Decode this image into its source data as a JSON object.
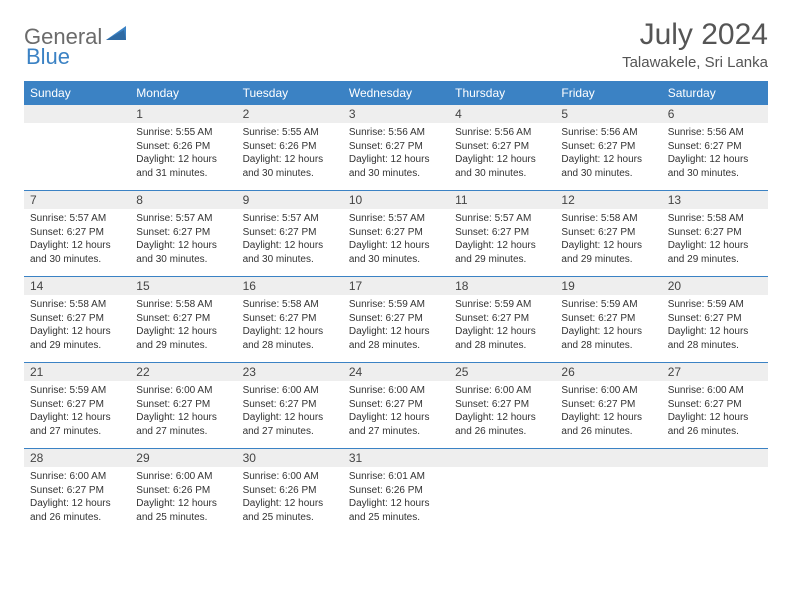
{
  "brand": {
    "general": "General",
    "blue": "Blue"
  },
  "title": {
    "month": "July 2024",
    "location": "Talawakele, Sri Lanka"
  },
  "colors": {
    "header_bg": "#3b82c4",
    "header_text": "#ffffff",
    "daynum_bg": "#eeeeee",
    "row_divider": "#3b82c4",
    "body_text": "#333333",
    "logo_gray": "#6b6b6b",
    "logo_blue": "#3b82c4"
  },
  "weekdays": [
    "Sunday",
    "Monday",
    "Tuesday",
    "Wednesday",
    "Thursday",
    "Friday",
    "Saturday"
  ],
  "weeks": [
    {
      "nums": [
        "",
        "1",
        "2",
        "3",
        "4",
        "5",
        "6"
      ],
      "cells": [
        null,
        {
          "sunrise": "Sunrise: 5:55 AM",
          "sunset": "Sunset: 6:26 PM",
          "day1": "Daylight: 12 hours",
          "day2": "and 31 minutes."
        },
        {
          "sunrise": "Sunrise: 5:55 AM",
          "sunset": "Sunset: 6:26 PM",
          "day1": "Daylight: 12 hours",
          "day2": "and 30 minutes."
        },
        {
          "sunrise": "Sunrise: 5:56 AM",
          "sunset": "Sunset: 6:27 PM",
          "day1": "Daylight: 12 hours",
          "day2": "and 30 minutes."
        },
        {
          "sunrise": "Sunrise: 5:56 AM",
          "sunset": "Sunset: 6:27 PM",
          "day1": "Daylight: 12 hours",
          "day2": "and 30 minutes."
        },
        {
          "sunrise": "Sunrise: 5:56 AM",
          "sunset": "Sunset: 6:27 PM",
          "day1": "Daylight: 12 hours",
          "day2": "and 30 minutes."
        },
        {
          "sunrise": "Sunrise: 5:56 AM",
          "sunset": "Sunset: 6:27 PM",
          "day1": "Daylight: 12 hours",
          "day2": "and 30 minutes."
        }
      ]
    },
    {
      "nums": [
        "7",
        "8",
        "9",
        "10",
        "11",
        "12",
        "13"
      ],
      "cells": [
        {
          "sunrise": "Sunrise: 5:57 AM",
          "sunset": "Sunset: 6:27 PM",
          "day1": "Daylight: 12 hours",
          "day2": "and 30 minutes."
        },
        {
          "sunrise": "Sunrise: 5:57 AM",
          "sunset": "Sunset: 6:27 PM",
          "day1": "Daylight: 12 hours",
          "day2": "and 30 minutes."
        },
        {
          "sunrise": "Sunrise: 5:57 AM",
          "sunset": "Sunset: 6:27 PM",
          "day1": "Daylight: 12 hours",
          "day2": "and 30 minutes."
        },
        {
          "sunrise": "Sunrise: 5:57 AM",
          "sunset": "Sunset: 6:27 PM",
          "day1": "Daylight: 12 hours",
          "day2": "and 30 minutes."
        },
        {
          "sunrise": "Sunrise: 5:57 AM",
          "sunset": "Sunset: 6:27 PM",
          "day1": "Daylight: 12 hours",
          "day2": "and 29 minutes."
        },
        {
          "sunrise": "Sunrise: 5:58 AM",
          "sunset": "Sunset: 6:27 PM",
          "day1": "Daylight: 12 hours",
          "day2": "and 29 minutes."
        },
        {
          "sunrise": "Sunrise: 5:58 AM",
          "sunset": "Sunset: 6:27 PM",
          "day1": "Daylight: 12 hours",
          "day2": "and 29 minutes."
        }
      ]
    },
    {
      "nums": [
        "14",
        "15",
        "16",
        "17",
        "18",
        "19",
        "20"
      ],
      "cells": [
        {
          "sunrise": "Sunrise: 5:58 AM",
          "sunset": "Sunset: 6:27 PM",
          "day1": "Daylight: 12 hours",
          "day2": "and 29 minutes."
        },
        {
          "sunrise": "Sunrise: 5:58 AM",
          "sunset": "Sunset: 6:27 PM",
          "day1": "Daylight: 12 hours",
          "day2": "and 29 minutes."
        },
        {
          "sunrise": "Sunrise: 5:58 AM",
          "sunset": "Sunset: 6:27 PM",
          "day1": "Daylight: 12 hours",
          "day2": "and 28 minutes."
        },
        {
          "sunrise": "Sunrise: 5:59 AM",
          "sunset": "Sunset: 6:27 PM",
          "day1": "Daylight: 12 hours",
          "day2": "and 28 minutes."
        },
        {
          "sunrise": "Sunrise: 5:59 AM",
          "sunset": "Sunset: 6:27 PM",
          "day1": "Daylight: 12 hours",
          "day2": "and 28 minutes."
        },
        {
          "sunrise": "Sunrise: 5:59 AM",
          "sunset": "Sunset: 6:27 PM",
          "day1": "Daylight: 12 hours",
          "day2": "and 28 minutes."
        },
        {
          "sunrise": "Sunrise: 5:59 AM",
          "sunset": "Sunset: 6:27 PM",
          "day1": "Daylight: 12 hours",
          "day2": "and 28 minutes."
        }
      ]
    },
    {
      "nums": [
        "21",
        "22",
        "23",
        "24",
        "25",
        "26",
        "27"
      ],
      "cells": [
        {
          "sunrise": "Sunrise: 5:59 AM",
          "sunset": "Sunset: 6:27 PM",
          "day1": "Daylight: 12 hours",
          "day2": "and 27 minutes."
        },
        {
          "sunrise": "Sunrise: 6:00 AM",
          "sunset": "Sunset: 6:27 PM",
          "day1": "Daylight: 12 hours",
          "day2": "and 27 minutes."
        },
        {
          "sunrise": "Sunrise: 6:00 AM",
          "sunset": "Sunset: 6:27 PM",
          "day1": "Daylight: 12 hours",
          "day2": "and 27 minutes."
        },
        {
          "sunrise": "Sunrise: 6:00 AM",
          "sunset": "Sunset: 6:27 PM",
          "day1": "Daylight: 12 hours",
          "day2": "and 27 minutes."
        },
        {
          "sunrise": "Sunrise: 6:00 AM",
          "sunset": "Sunset: 6:27 PM",
          "day1": "Daylight: 12 hours",
          "day2": "and 26 minutes."
        },
        {
          "sunrise": "Sunrise: 6:00 AM",
          "sunset": "Sunset: 6:27 PM",
          "day1": "Daylight: 12 hours",
          "day2": "and 26 minutes."
        },
        {
          "sunrise": "Sunrise: 6:00 AM",
          "sunset": "Sunset: 6:27 PM",
          "day1": "Daylight: 12 hours",
          "day2": "and 26 minutes."
        }
      ]
    },
    {
      "nums": [
        "28",
        "29",
        "30",
        "31",
        "",
        "",
        ""
      ],
      "cells": [
        {
          "sunrise": "Sunrise: 6:00 AM",
          "sunset": "Sunset: 6:27 PM",
          "day1": "Daylight: 12 hours",
          "day2": "and 26 minutes."
        },
        {
          "sunrise": "Sunrise: 6:00 AM",
          "sunset": "Sunset: 6:26 PM",
          "day1": "Daylight: 12 hours",
          "day2": "and 25 minutes."
        },
        {
          "sunrise": "Sunrise: 6:00 AM",
          "sunset": "Sunset: 6:26 PM",
          "day1": "Daylight: 12 hours",
          "day2": "and 25 minutes."
        },
        {
          "sunrise": "Sunrise: 6:01 AM",
          "sunset": "Sunset: 6:26 PM",
          "day1": "Daylight: 12 hours",
          "day2": "and 25 minutes."
        },
        null,
        null,
        null
      ]
    }
  ]
}
